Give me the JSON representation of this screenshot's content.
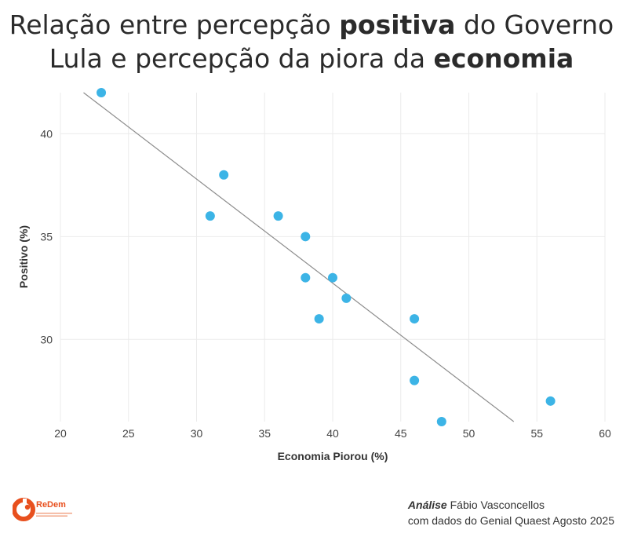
{
  "title": {
    "part1": "Relação entre percepção ",
    "bold1": "positiva",
    "part2": " do Governo",
    "part3": "Lula e percepção da piora da ",
    "bold2": "economia"
  },
  "chart_data": {
    "type": "scatter",
    "xlabel": "Economia Piorou (%)",
    "ylabel": "Positivo (%)",
    "xlim": [
      20,
      60
    ],
    "ylim": [
      26,
      42
    ],
    "xticks": [
      20,
      25,
      30,
      35,
      40,
      45,
      50,
      55,
      60
    ],
    "yticks": [
      30,
      35,
      40
    ],
    "grid": true,
    "points": [
      {
        "x": 23,
        "y": 42
      },
      {
        "x": 31,
        "y": 36
      },
      {
        "x": 32,
        "y": 38
      },
      {
        "x": 36,
        "y": 36
      },
      {
        "x": 38,
        "y": 35
      },
      {
        "x": 38,
        "y": 33
      },
      {
        "x": 39,
        "y": 31
      },
      {
        "x": 40,
        "y": 33
      },
      {
        "x": 41,
        "y": 32
      },
      {
        "x": 46,
        "y": 31
      },
      {
        "x": 46,
        "y": 28
      },
      {
        "x": 48,
        "y": 26
      },
      {
        "x": 56,
        "y": 27
      }
    ],
    "trendline": {
      "x_start": 21.7,
      "y_start": 42.0,
      "x_end": 53.3,
      "y_end": 26.0
    },
    "point_color": "#3cb4e6",
    "trend_color": "#8c8c8c"
  },
  "footer": {
    "logo_name": "ReDem",
    "credit_bold": "Análise",
    "credit_author": " Fábio Vasconcellos",
    "credit_source": "com dados do Genial Quaest Agosto 2025",
    "logo_color": "#e8501e"
  }
}
